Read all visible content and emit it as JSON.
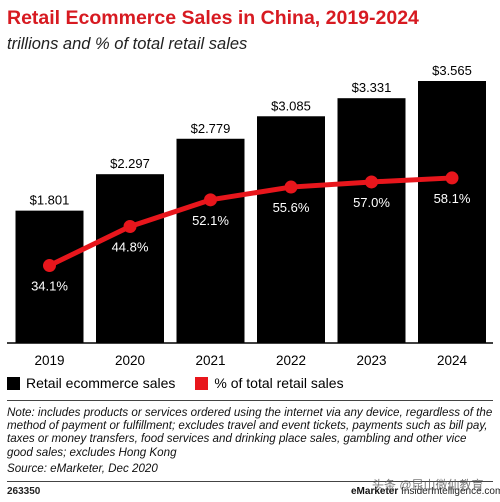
{
  "chart_data": {
    "type": "bar",
    "title": "Retail Ecommerce Sales in China, 2019-2024",
    "subtitle": "trillions and % of total retail sales",
    "categories": [
      "2019",
      "2020",
      "2021",
      "2022",
      "2023",
      "2024"
    ],
    "series": [
      {
        "name": "Retail ecommerce sales",
        "type": "bar",
        "values": [
          1.801,
          2.297,
          2.779,
          3.085,
          3.331,
          3.565
        ],
        "labels": [
          "$1.801",
          "$2.297",
          "$2.779",
          "$3.085",
          "$3.331",
          "$3.565"
        ],
        "color": "#000000"
      },
      {
        "name": "% of total retail sales",
        "type": "line",
        "values": [
          34.1,
          44.8,
          52.1,
          55.6,
          57.0,
          58.1
        ],
        "labels": [
          "34.1%",
          "44.8%",
          "52.1%",
          "55.6%",
          "57.0%",
          "58.1%"
        ],
        "color": "#e8161c"
      }
    ],
    "legend_position": "bottom-left",
    "grid": false
  },
  "note": "Note: includes products or services ordered using the internet via any device, regardless of the method of payment or fulfillment; excludes travel and event tickets, payments such as bill pay, taxes or money transfers, food services and drinking place sales, gambling and other vice good sales; excludes Hong Kong",
  "source": "Source: eMarketer, Dec 2020",
  "footer": {
    "chart_id": "263350",
    "brand": "eMarketer",
    "brand_site": "InsiderIntelligence.com",
    "watermark": "头条 @昆山微仙教育"
  }
}
